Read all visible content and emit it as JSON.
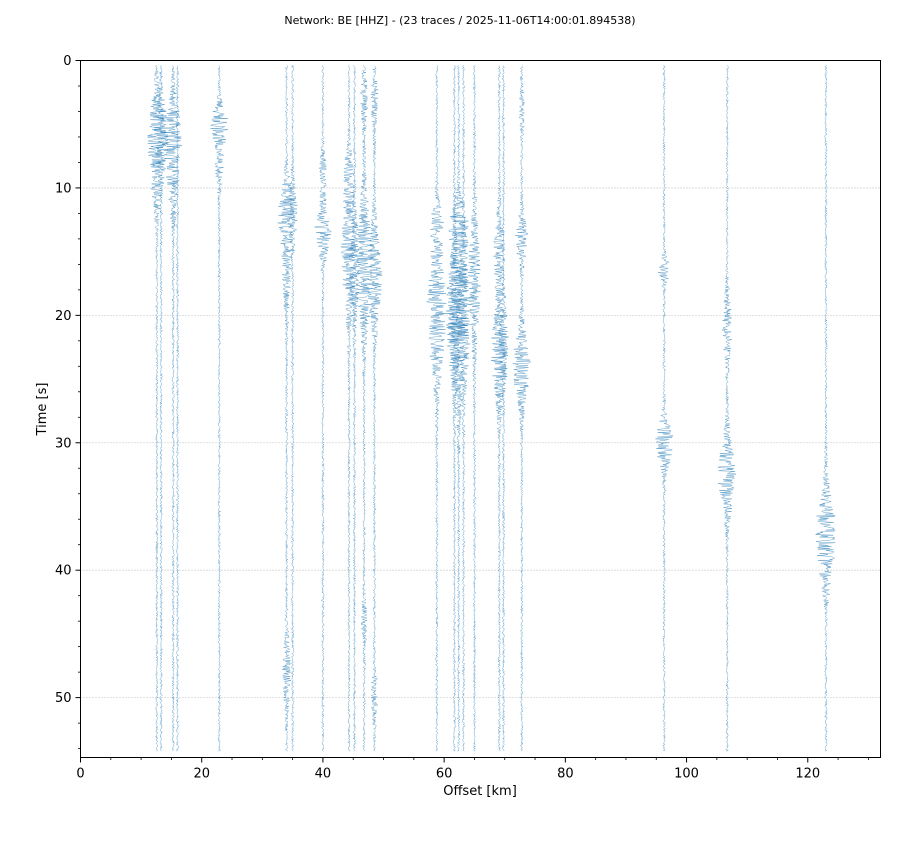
{
  "chart_data": {
    "type": "line",
    "title": "Network: BE [HHZ] - (23 traces / 2025-11-06T14:00:01.894538)",
    "xlabel": "Offset [km]",
    "ylabel": "Time [s]",
    "xlim": [
      0,
      132
    ],
    "ylim": [
      54.7,
      0
    ],
    "y_inverted": true,
    "xticks": [
      0,
      20,
      40,
      60,
      80,
      100,
      120
    ],
    "yticks": [
      0,
      10,
      20,
      30,
      40,
      50
    ],
    "grid": "horizontal dotted",
    "trace_color": "#1f77b4",
    "series": [
      {
        "offset": 12.6,
        "bursts": [
          [
            6.0,
            1.2,
            3.5
          ],
          [
            10.0,
            0.4,
            2.5
          ]
        ]
      },
      {
        "offset": 13.3,
        "bursts": [
          [
            6.0,
            1.0,
            3.0
          ]
        ]
      },
      {
        "offset": 15.3,
        "bursts": [
          [
            6.0,
            1.2,
            3.0
          ],
          [
            10.0,
            0.5,
            3.0
          ]
        ]
      },
      {
        "offset": 16.0,
        "bursts": []
      },
      {
        "offset": 22.9,
        "bursts": [
          [
            5.0,
            1.2,
            1.5
          ],
          [
            8.0,
            0.5,
            2.0
          ]
        ]
      },
      {
        "offset": 34.0,
        "bursts": [
          [
            12.0,
            1.1,
            2.5
          ],
          [
            16.0,
            0.5,
            4.0
          ],
          [
            48.0,
            0.5,
            3.0
          ]
        ]
      },
      {
        "offset": 35.0,
        "bursts": [
          [
            12.0,
            0.6,
            2.5
          ]
        ]
      },
      {
        "offset": 40.0,
        "bursts": [
          [
            13.5,
            1.2,
            2.0
          ],
          [
            9.0,
            0.4,
            2.0
          ]
        ]
      },
      {
        "offset": 44.3,
        "bursts": [
          [
            15.0,
            1.0,
            5.0
          ],
          [
            9.0,
            0.5,
            2.0
          ]
        ]
      },
      {
        "offset": 45.2,
        "bursts": [
          [
            16.0,
            0.7,
            4.0
          ]
        ]
      },
      {
        "offset": 46.8,
        "bursts": [
          [
            16.0,
            1.3,
            5.0
          ],
          [
            3.0,
            0.4,
            2.5
          ],
          [
            44.0,
            0.3,
            2.0
          ]
        ]
      },
      {
        "offset": 48.5,
        "bursts": [
          [
            17.0,
            1.0,
            4.0
          ],
          [
            3.0,
            0.4,
            2.5
          ],
          [
            50.0,
            0.4,
            2.0
          ]
        ]
      },
      {
        "offset": 58.8,
        "bursts": [
          [
            20.0,
            1.4,
            5.0
          ],
          [
            13.0,
            0.7,
            2.0
          ]
        ]
      },
      {
        "offset": 61.7,
        "bursts": [
          [
            20.0,
            1.1,
            5.0
          ]
        ]
      },
      {
        "offset": 62.4,
        "bursts": [
          [
            20.0,
            1.5,
            6.0
          ],
          [
            13.0,
            1.0,
            2.0
          ]
        ]
      },
      {
        "offset": 63.2,
        "bursts": [
          [
            20.0,
            1.1,
            5.0
          ]
        ]
      },
      {
        "offset": 65.0,
        "bursts": [
          [
            17.0,
            0.8,
            5.0
          ]
        ]
      },
      {
        "offset": 69.1,
        "bursts": [
          [
            23.0,
            1.2,
            4.0
          ],
          [
            15.0,
            0.7,
            3.0
          ]
        ]
      },
      {
        "offset": 69.8,
        "bursts": [
          [
            22.0,
            0.7,
            3.0
          ]
        ]
      },
      {
        "offset": 72.8,
        "bursts": [
          [
            24.0,
            1.2,
            3.0
          ],
          [
            14.0,
            0.8,
            2.0
          ],
          [
            4.0,
            0.3,
            2.0
          ]
        ]
      },
      {
        "offset": 96.3,
        "bursts": [
          [
            30.0,
            1.3,
            2.0
          ],
          [
            16.5,
            0.8,
            1.0
          ]
        ]
      },
      {
        "offset": 106.7,
        "bursts": [
          [
            32.5,
            1.3,
            3.0
          ],
          [
            21.0,
            0.6,
            3.0
          ]
        ]
      },
      {
        "offset": 123.0,
        "bursts": [
          [
            36.5,
            1.3,
            3.0
          ],
          [
            40.0,
            0.6,
            2.5
          ]
        ]
      }
    ]
  }
}
